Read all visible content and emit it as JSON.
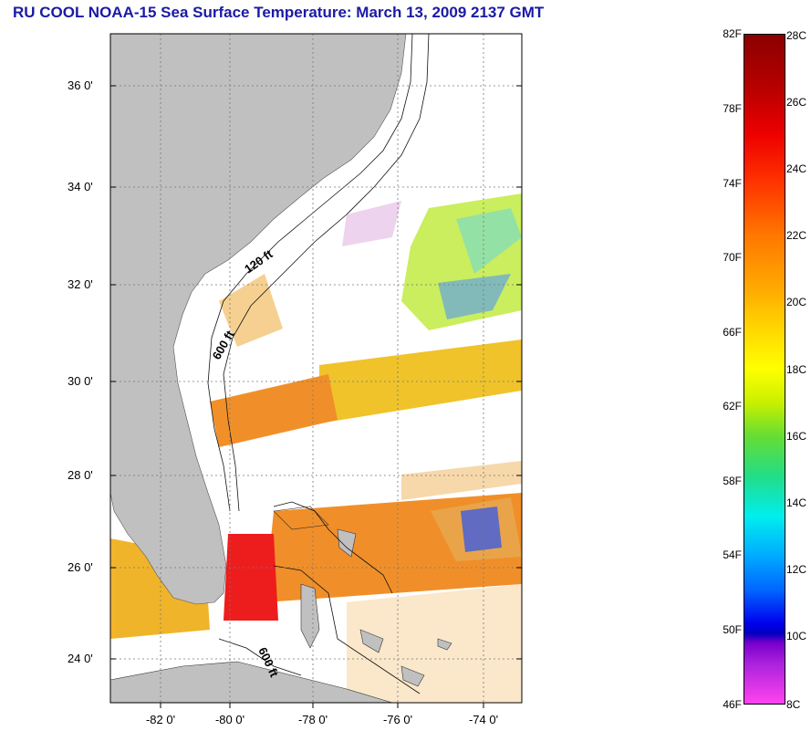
{
  "title": "RU COOL  NOAA-15  Sea Surface Temperature:  March 13, 2009 2137 GMT",
  "map": {
    "lat_labels": [
      "36 0'",
      "34 0'",
      "32 0'",
      "30 0'",
      "28 0'",
      "26 0'",
      "24 0'"
    ],
    "lon_labels": [
      "-82 0'",
      "-80 0'",
      "-78 0'",
      "-76 0'",
      "-74 0'"
    ],
    "depth_labels": [
      "120 ft",
      "600 ft",
      "600 ft"
    ],
    "land_color": "#c0c0c0",
    "water_color": "#ffffff"
  },
  "colorbar": {
    "fahrenheit_labels": [
      "82F",
      "78F",
      "74F",
      "70F",
      "66F",
      "62F",
      "58F",
      "54F",
      "50F",
      "46F"
    ],
    "celsius_labels": [
      "28C",
      "26C",
      "24C",
      "22C",
      "20C",
      "18C",
      "16C",
      "14C",
      "12C",
      "10C",
      "8C"
    ]
  }
}
